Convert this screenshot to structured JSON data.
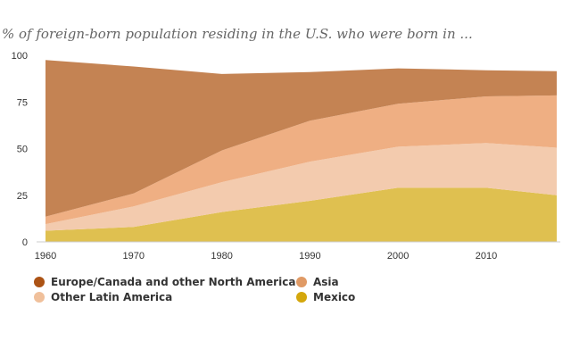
{
  "chart_data": {
    "type": "area",
    "stacked": true,
    "subtitle": "% of foreign-born population residing in the U.S. who were born in ...",
    "x": [
      1960,
      1970,
      1980,
      1990,
      2000,
      2010,
      2018
    ],
    "xticks": [
      "1960",
      "1970",
      "1980",
      "1990",
      "2000",
      "2010"
    ],
    "yticks": [
      "0",
      "25",
      "50",
      "75",
      "100"
    ],
    "xlim": [
      1960,
      2018
    ],
    "ylim": [
      0,
      100
    ],
    "grid": false,
    "legend_position": "bottom-left",
    "series": [
      {
        "name": "Mexico",
        "color": "#dfc050",
        "values": [
          6,
          8,
          16,
          22,
          29,
          29,
          25
        ]
      },
      {
        "name": "Other Latin America",
        "color": "#f3cbae",
        "values": [
          3.5,
          11,
          16,
          21,
          22,
          24,
          25.5
        ]
      },
      {
        "name": "Asia",
        "color": "#efaf83",
        "values": [
          4,
          7,
          17,
          22,
          23,
          25,
          28
        ]
      },
      {
        "name": "Europe/Canada and other North America",
        "color": "#c48353",
        "values": [
          84,
          68,
          41,
          26,
          19,
          14,
          13
        ]
      }
    ],
    "legend": [
      {
        "label": "Europe/Canada and other North America",
        "color": "#ac5315"
      },
      {
        "label": "Asia",
        "color": "#e09a65"
      },
      {
        "label": "Other Latin America",
        "color": "#f0c09b"
      },
      {
        "label": "Mexico",
        "color": "#d4a70c"
      }
    ]
  }
}
